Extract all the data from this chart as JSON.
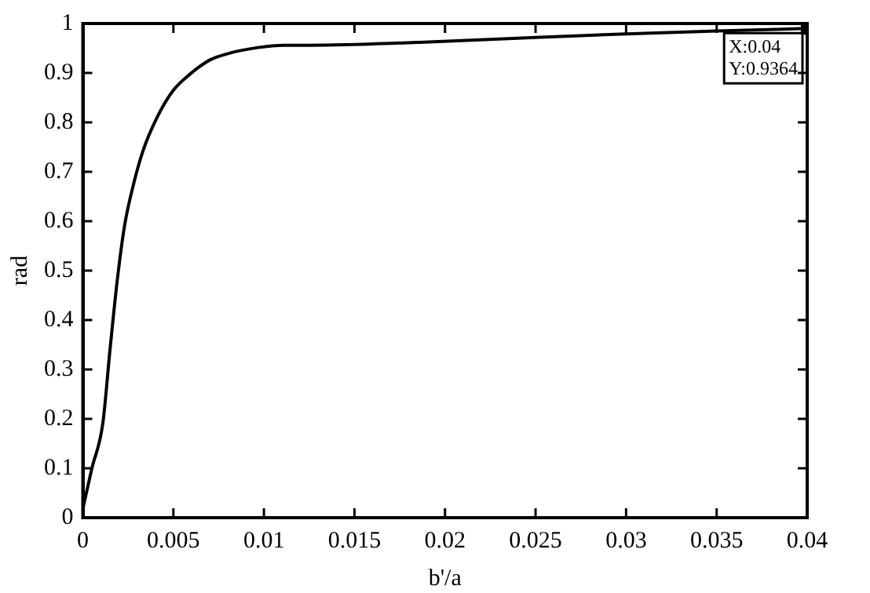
{
  "chart_data": {
    "type": "line",
    "xlabel": "b'/a",
    "ylabel": "rad",
    "xlim": [
      0,
      0.04
    ],
    "xticks": [
      0,
      0.005,
      0.01,
      0.015,
      0.02,
      0.025,
      0.03,
      0.035,
      0.04
    ],
    "ylim": [
      0,
      1
    ],
    "yticks": [
      0,
      0.1,
      0.2,
      0.3,
      0.4,
      0.5,
      0.6,
      0.7,
      0.8,
      0.9,
      1
    ],
    "grid": false,
    "legend": false,
    "marker": "none",
    "line_style": "solid",
    "series": [
      {
        "color": "#000000",
        "x": [
          0,
          0.0005,
          0.0011,
          0.0015,
          0.0019,
          0.0023,
          0.0027,
          0.0033,
          0.0041,
          0.005,
          0.0059,
          0.007,
          0.0082,
          0.0096,
          0.0111,
          0.0125,
          0.0145,
          0.0186,
          0.025,
          0.03,
          0.035,
          0.04
        ],
        "values": [
          0.018,
          0.1,
          0.19,
          0.34,
          0.48,
          0.59,
          0.66,
          0.74,
          0.81,
          0.865,
          0.897,
          0.926,
          0.941,
          0.951,
          0.956,
          0.956,
          0.957,
          0.962,
          0.972,
          0.979,
          0.985,
          0.99
        ]
      },
      {
        "type": "scatter",
        "color": "#000000",
        "marker": "square",
        "x": [
          0.04
        ],
        "values": [
          0.99
        ]
      }
    ],
    "annotations": [
      {
        "text": "X:0.04\nY:0.9364",
        "x": 0.04,
        "y": 0.99
      }
    ]
  }
}
